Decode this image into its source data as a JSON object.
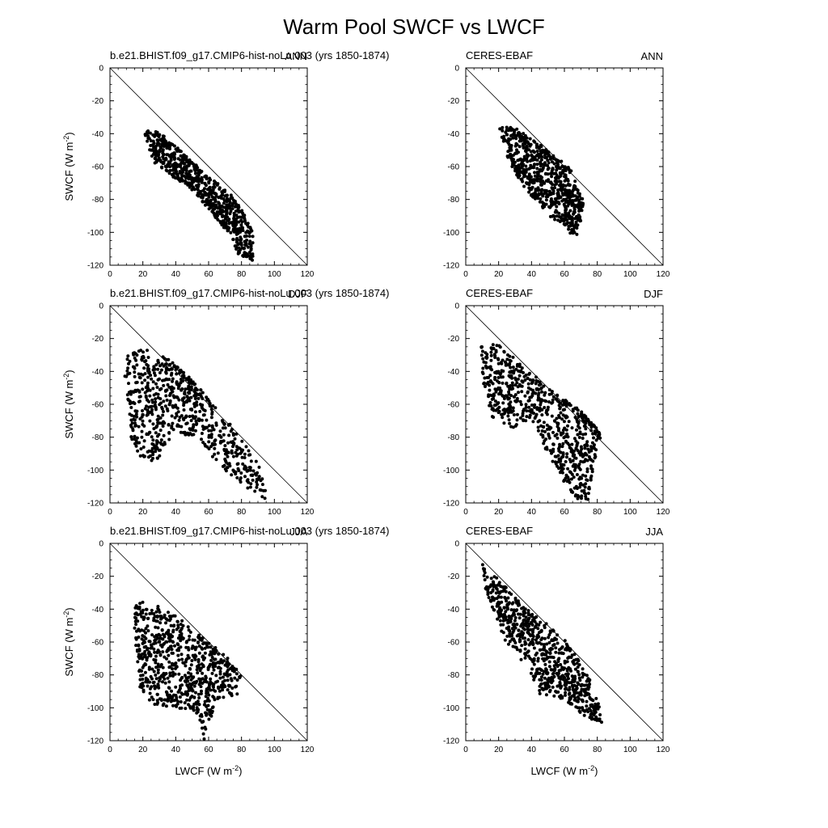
{
  "title": "Warm Pool SWCF vs LWCF",
  "colors": {
    "marker": "#000000",
    "axis": "#000000",
    "background": "#ffffff"
  },
  "axis_text": {
    "xlabel_base": "LWCF (W m",
    "ylabel_base": "SWCF (W m",
    "unit_exponent": "-2",
    "unit_close": ")"
  },
  "chart_data": [
    {
      "id": "model-ann",
      "type": "scatter",
      "left_label": "b.e21.BHIST.f09_g17.CMIP6-hist-noLu.003 (yrs 1850-1874)",
      "right_label": "ANN",
      "xlim": [
        0,
        120
      ],
      "ylim": [
        -120,
        0
      ],
      "xticks": [
        0,
        20,
        40,
        60,
        80,
        100,
        120
      ],
      "yticks": [
        0,
        -20,
        -40,
        -60,
        -80,
        -100,
        -120
      ],
      "show_xlabel": false,
      "show_ylabel": true,
      "reference_line": "one-to-one (y = -x)",
      "cloud": [
        [
          20,
          -37
        ],
        [
          30,
          -39
        ],
        [
          45,
          -52
        ],
        [
          60,
          -66
        ],
        [
          72,
          -75
        ],
        [
          80,
          -86
        ],
        [
          87,
          -100
        ],
        [
          87,
          -118
        ],
        [
          78,
          -113
        ],
        [
          70,
          -98
        ],
        [
          60,
          -86
        ],
        [
          48,
          -72
        ],
        [
          36,
          -65
        ],
        [
          27,
          -58
        ],
        [
          22,
          -44
        ]
      ]
    },
    {
      "id": "obs-ann",
      "type": "scatter",
      "left_label": "CERES-EBAF",
      "right_label": "ANN",
      "xlim": [
        0,
        120
      ],
      "ylim": [
        -120,
        0
      ],
      "xticks": [
        0,
        20,
        40,
        60,
        80,
        100,
        120
      ],
      "yticks": [
        0,
        -20,
        -40,
        -60,
        -80,
        -100,
        -120
      ],
      "show_xlabel": false,
      "show_ylabel": false,
      "reference_line": "one-to-one (y = -x)",
      "cloud": [
        [
          20,
          -35
        ],
        [
          30,
          -36
        ],
        [
          40,
          -43
        ],
        [
          52,
          -52
        ],
        [
          63,
          -60
        ],
        [
          72,
          -82
        ],
        [
          68,
          -104
        ],
        [
          60,
          -98
        ],
        [
          50,
          -89
        ],
        [
          42,
          -80
        ],
        [
          33,
          -70
        ],
        [
          27,
          -58
        ],
        [
          22,
          -45
        ]
      ]
    },
    {
      "id": "model-djf",
      "type": "scatter",
      "left_label": "b.e21.BHIST.f09_g17.CMIP6-hist-noLu.003 (yrs 1850-1874)",
      "right_label": "DJF",
      "xlim": [
        0,
        120
      ],
      "ylim": [
        -120,
        0
      ],
      "xticks": [
        0,
        20,
        40,
        60,
        80,
        100,
        120
      ],
      "yticks": [
        0,
        -20,
        -40,
        -60,
        -80,
        -100,
        -120
      ],
      "show_xlabel": false,
      "show_ylabel": true,
      "reference_line": "one-to-one (y = -x)",
      "cloud": [
        [
          10,
          -31
        ],
        [
          20,
          -26
        ],
        [
          35,
          -32
        ],
        [
          50,
          -45
        ],
        [
          65,
          -63
        ],
        [
          80,
          -80
        ],
        [
          90,
          -95
        ],
        [
          97,
          -119
        ],
        [
          85,
          -112
        ],
        [
          70,
          -100
        ],
        [
          55,
          -85
        ],
        [
          40,
          -75
        ],
        [
          28,
          -95
        ],
        [
          18,
          -92
        ],
        [
          12,
          -78
        ],
        [
          9,
          -42
        ]
      ]
    },
    {
      "id": "obs-djf",
      "type": "scatter",
      "left_label": "CERES-EBAF",
      "right_label": "DJF",
      "xlim": [
        0,
        120
      ],
      "ylim": [
        -120,
        0
      ],
      "xticks": [
        0,
        20,
        40,
        60,
        80,
        100,
        120
      ],
      "yticks": [
        0,
        -20,
        -40,
        -60,
        -80,
        -100,
        -120
      ],
      "show_xlabel": false,
      "show_ylabel": false,
      "reference_line": "one-to-one (y = -x)",
      "cloud": [
        [
          9,
          -22
        ],
        [
          20,
          -24
        ],
        [
          35,
          -36
        ],
        [
          50,
          -50
        ],
        [
          70,
          -64
        ],
        [
          83,
          -78
        ],
        [
          78,
          -95
        ],
        [
          75,
          -118
        ],
        [
          68,
          -120
        ],
        [
          60,
          -108
        ],
        [
          50,
          -90
        ],
        [
          40,
          -70
        ],
        [
          30,
          -75
        ],
        [
          15,
          -68
        ],
        [
          10,
          -45
        ]
      ]
    },
    {
      "id": "model-jja",
      "type": "scatter",
      "left_label": "b.e21.BHIST.f09_g17.CMIP6-hist-noLu.003 (yrs 1850-1874)",
      "right_label": "JJA",
      "xlim": [
        0,
        120
      ],
      "ylim": [
        -120,
        0
      ],
      "xticks": [
        0,
        20,
        40,
        60,
        80,
        100,
        120
      ],
      "yticks": [
        0,
        -20,
        -40,
        -60,
        -80,
        -100,
        -120
      ],
      "show_xlabel": true,
      "show_ylabel": true,
      "reference_line": "one-to-one (y = -x)",
      "cloud": [
        [
          15,
          -38
        ],
        [
          22,
          -34
        ],
        [
          40,
          -44
        ],
        [
          55,
          -56
        ],
        [
          70,
          -68
        ],
        [
          80,
          -80
        ],
        [
          78,
          -92
        ],
        [
          65,
          -95
        ],
        [
          57,
          -120
        ],
        [
          52,
          -102
        ],
        [
          40,
          -100
        ],
        [
          25,
          -98
        ],
        [
          18,
          -88
        ],
        [
          15,
          -55
        ]
      ]
    },
    {
      "id": "obs-jja",
      "type": "scatter",
      "left_label": "CERES-EBAF",
      "right_label": "JJA",
      "xlim": [
        0,
        120
      ],
      "ylim": [
        -120,
        0
      ],
      "xticks": [
        0,
        20,
        40,
        60,
        80,
        100,
        120
      ],
      "yticks": [
        0,
        -20,
        -40,
        -60,
        -80,
        -100,
        -120
      ],
      "show_xlabel": true,
      "show_ylabel": false,
      "reference_line": "one-to-one (y = -x)",
      "cloud": [
        [
          9,
          -11
        ],
        [
          20,
          -22
        ],
        [
          35,
          -38
        ],
        [
          48,
          -48
        ],
        [
          62,
          -60
        ],
        [
          75,
          -82
        ],
        [
          82,
          -100
        ],
        [
          83,
          -110
        ],
        [
          72,
          -105
        ],
        [
          60,
          -95
        ],
        [
          45,
          -92
        ],
        [
          38,
          -75
        ],
        [
          25,
          -62
        ],
        [
          12,
          -28
        ]
      ]
    }
  ]
}
